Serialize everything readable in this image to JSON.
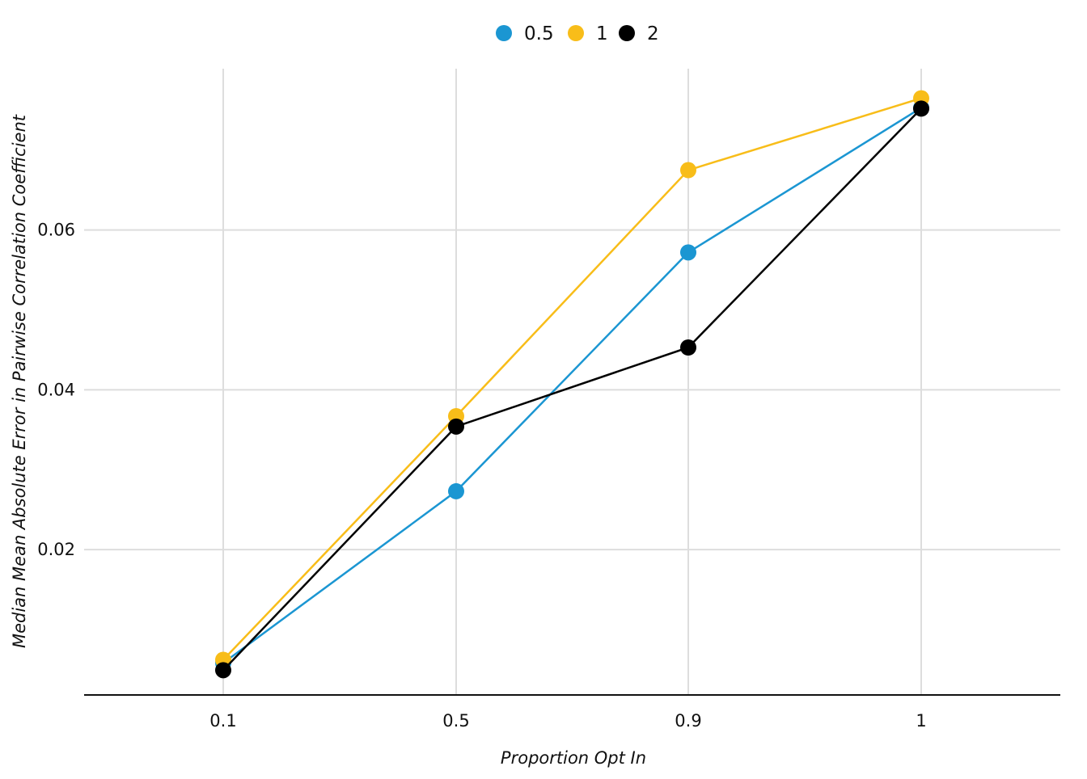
{
  "chart_data": {
    "type": "line",
    "title": "",
    "xlabel": "Proportion Opt In",
    "ylabel": "Median Mean Absolute Error in Pairwise Correlation Coefficient",
    "categories": [
      "0.1",
      "0.5",
      "0.9",
      "1"
    ],
    "yticks": [
      0.02,
      0.04,
      0.06
    ],
    "ytick_labels": [
      "0.02",
      "0.04",
      "0.06"
    ],
    "ylim": [
      0.0018,
      0.0802
    ],
    "grid": true,
    "legend_position": "top-center",
    "series": [
      {
        "name": "0.5",
        "color": "#1b96d2",
        "values": [
          0.0058,
          0.0273,
          0.0572,
          0.0753
        ]
      },
      {
        "name": "1",
        "color": "#f8bd19",
        "values": [
          0.0062,
          0.0367,
          0.0675,
          0.0765
        ]
      },
      {
        "name": "2",
        "color": "#000000",
        "values": [
          0.0049,
          0.0354,
          0.0453,
          0.0752
        ]
      }
    ]
  }
}
